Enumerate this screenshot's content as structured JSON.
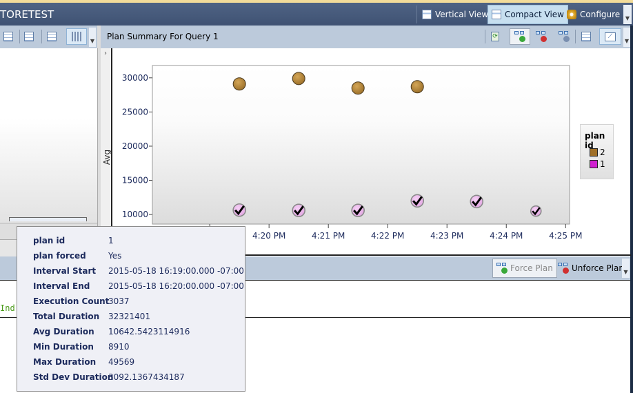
{
  "titlebar": {
    "title": "TORETEST",
    "buttons": [
      {
        "label": "Vertical View",
        "icon": "vertical-view-icon",
        "selected": false
      },
      {
        "label": "Compact View",
        "icon": "compact-view-icon",
        "selected": true
      },
      {
        "label": "Configure",
        "icon": "gear-icon",
        "selected": false
      }
    ]
  },
  "left_toolbar": {
    "tools": [
      {
        "icon": "zoom-grid-icon"
      },
      {
        "icon": "grid-icon"
      },
      {
        "icon": "table-icon"
      },
      {
        "icon": "bar-chart-icon",
        "selected": true
      }
    ]
  },
  "plan_panel": {
    "title": "Plan Summary For Query 1",
    "tools": [
      {
        "icon": "refresh-icon"
      },
      {
        "icon": "force-plan-icon",
        "selected": true
      },
      {
        "icon": "unforce-plan-icon"
      },
      {
        "icon": "compare-plans-icon"
      },
      {
        "icon": "grid-view-icon"
      },
      {
        "icon": "chart-view-icon",
        "selected": true
      }
    ],
    "collapse_glyph": "›"
  },
  "bottom_toolbar": {
    "force_plan": {
      "label": "Force Plan",
      "enabled": false
    },
    "unforce_plan": {
      "label": "Unforce Plan",
      "enabled": true
    }
  },
  "code_snippet": "Ind",
  "tooltip": {
    "rows": [
      {
        "key": "plan id",
        "value": "1"
      },
      {
        "key": "plan forced",
        "value": "Yes"
      },
      {
        "key": "Interval Start",
        "value": "2015-05-18 16:19:00.000 -07:00"
      },
      {
        "key": "Interval End",
        "value": "2015-05-18 16:20:00.000 -07:00"
      },
      {
        "key": "Execution Count",
        "value": "3037"
      },
      {
        "key": "Total Duration",
        "value": "32321401"
      },
      {
        "key": "Avg Duration",
        "value": "10642.5423114916"
      },
      {
        "key": "Min Duration",
        "value": "8910"
      },
      {
        "key": "Max Duration",
        "value": "49569"
      },
      {
        "key": "Std Dev Duration",
        "value": "3092.1367434187"
      }
    ]
  },
  "chart_data": {
    "type": "scatter",
    "ylabel": "Avg",
    "xlabel": "",
    "ylim": [
      8600,
      31800
    ],
    "xlim": [
      "16:18:02",
      "16:25:04"
    ],
    "yticks": [
      10000,
      15000,
      20000,
      25000,
      30000
    ],
    "ytick_labels": [
      "10000",
      "15000",
      "20000",
      "25000",
      "30000"
    ],
    "xticks": [
      "16:19:00",
      "16:20:00",
      "16:21:00",
      "16:22:00",
      "16:23:00",
      "16:24:00",
      "16:25:00"
    ],
    "xtick_labels": [
      "",
      "4:20 PM",
      "4:21 PM",
      "4:22 PM",
      "4:23 PM",
      "4:24 PM",
      "4:25 PM"
    ],
    "grid": false,
    "legend": {
      "title": "plan id",
      "placement": "right"
    },
    "series": [
      {
        "name": "2",
        "color": "#a07028",
        "forced": false,
        "points": [
          {
            "x": "16:19:30",
            "y": 29100
          },
          {
            "x": "16:20:30",
            "y": 29900
          },
          {
            "x": "16:21:30",
            "y": 28500
          },
          {
            "x": "16:22:30",
            "y": 28700
          }
        ]
      },
      {
        "name": "1",
        "color": "#d020d0",
        "forced": true,
        "points": [
          {
            "x": "16:19:30",
            "y": 10642
          },
          {
            "x": "16:20:30",
            "y": 10600
          },
          {
            "x": "16:21:30",
            "y": 10600
          },
          {
            "x": "16:22:30",
            "y": 12000
          },
          {
            "x": "16:23:30",
            "y": 11900
          },
          {
            "x": "16:24:30",
            "y": 10500
          }
        ]
      }
    ]
  }
}
